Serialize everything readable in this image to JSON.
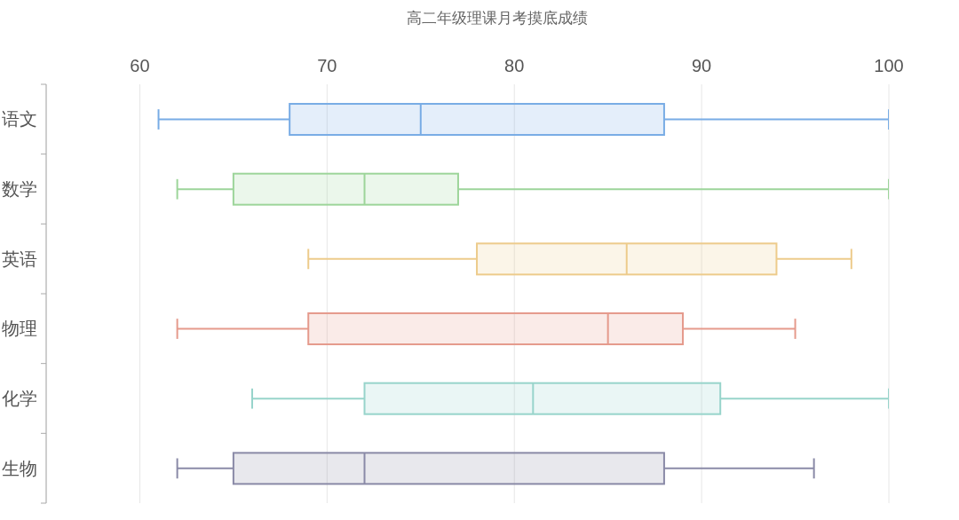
{
  "chart_data": {
    "type": "box",
    "title": "高二年级理课月考摸底成绩",
    "orientation": "horizontal",
    "categories": [
      "语文",
      "数学",
      "英语",
      "物理",
      "化学",
      "生物"
    ],
    "colors": [
      "#78ace5",
      "#9dd59a",
      "#edcb8b",
      "#e59a8c",
      "#98d4cb",
      "#8a8aa7"
    ],
    "boxes": [
      {
        "low": 61,
        "q1": 68,
        "median": 75,
        "q3": 88,
        "high": 100
      },
      {
        "low": 62,
        "q1": 65,
        "median": 72,
        "q3": 77,
        "high": 100
      },
      {
        "low": 69,
        "q1": 78,
        "median": 86,
        "q3": 94,
        "high": 98
      },
      {
        "low": 62,
        "q1": 69,
        "median": 85,
        "q3": 89,
        "high": 95
      },
      {
        "low": 66,
        "q1": 72,
        "median": 81,
        "q3": 91,
        "high": 100
      },
      {
        "low": 62,
        "q1": 65,
        "median": 72,
        "q3": 88,
        "high": 96
      }
    ],
    "xlim": [
      55,
      100
    ],
    "xticks": [
      60,
      70,
      80,
      90,
      100
    ],
    "grid": "x"
  }
}
